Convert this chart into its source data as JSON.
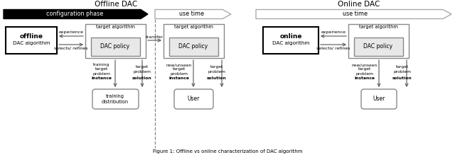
{
  "title_offline": "Offline DAC",
  "title_online": "Online DAC",
  "caption": "Figure 1: Offline vs online characterization of DAC algorithm",
  "bg_color": "#ffffff",
  "black_fill": "#000000",
  "dark_edge": "#000000",
  "gray_edge": "#888888",
  "arrow_color": "#555555",
  "inner_box_fill": "#e8e8e8"
}
